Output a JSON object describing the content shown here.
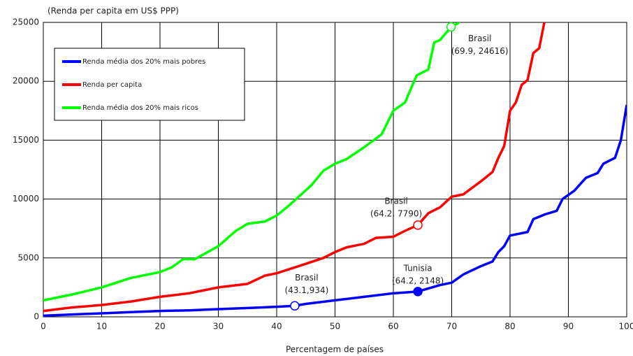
{
  "chart_data": {
    "type": "line",
    "y_label": "(Renda per capita em US$ PPP)",
    "x_label": "Percentagem de países",
    "xlim": [
      0,
      100
    ],
    "ylim": [
      0,
      25000
    ],
    "xticks": [
      0,
      10,
      20,
      30,
      40,
      50,
      60,
      70,
      80,
      90,
      100
    ],
    "yticks": [
      0,
      5000,
      10000,
      15000,
      20000,
      25000
    ],
    "grid": true,
    "legend": "upper left",
    "series": [
      {
        "name": "Renda média dos 20% mais pobres",
        "color": "#0000ff",
        "x": [
          0,
          5,
          10,
          15,
          20,
          25,
          30,
          35,
          40,
          43.1,
          45,
          50,
          55,
          60,
          64.2,
          68,
          70,
          72,
          75,
          77,
          78,
          79,
          80,
          83,
          84,
          86,
          88,
          89,
          91,
          93,
          95,
          96,
          98,
          99,
          100
        ],
        "values": [
          100,
          200,
          300,
          400,
          500,
          550,
          650,
          750,
          850,
          934,
          1100,
          1400,
          1700,
          2000,
          2148,
          2700,
          2900,
          3600,
          4300,
          4700,
          5500,
          6000,
          6900,
          7200,
          8300,
          8700,
          9000,
          10000,
          10700,
          11800,
          12200,
          13000,
          13500,
          15000,
          18000
        ]
      },
      {
        "name": "Renda per capita",
        "color": "#ff0000",
        "x": [
          0,
          5,
          10,
          15,
          20,
          25,
          30,
          35,
          38,
          40,
          45,
          48,
          50,
          52,
          55,
          57,
          60,
          62,
          64.2,
          66,
          68,
          70,
          72,
          75,
          77,
          78,
          79,
          80,
          81,
          82,
          83,
          84,
          85,
          86
        ],
        "values": [
          500,
          800,
          1000,
          1300,
          1700,
          2000,
          2500,
          2800,
          3500,
          3700,
          4500,
          5000,
          5500,
          5900,
          6200,
          6700,
          6800,
          7300,
          7790,
          8800,
          9300,
          10200,
          10400,
          11500,
          12300,
          13500,
          14500,
          17500,
          18200,
          19700,
          20100,
          22400,
          22800,
          25300
        ]
      },
      {
        "name": "Renda média dos 20% mais ricos",
        "color": "#00ff00",
        "x": [
          0,
          5,
          10,
          15,
          20,
          22,
          24,
          26,
          30,
          33,
          35,
          38,
          40,
          42,
          44,
          46,
          48,
          50,
          52,
          55,
          58,
          60,
          62,
          64,
          66,
          67,
          68,
          69.9,
          71,
          72
        ],
        "values": [
          1400,
          1900,
          2500,
          3300,
          3800,
          4200,
          4900,
          4900,
          6000,
          7300,
          7900,
          8100,
          8600,
          9400,
          10300,
          11200,
          12400,
          13000,
          13400,
          14400,
          15500,
          17500,
          18200,
          20500,
          21000,
          23300,
          23500,
          24616,
          24900,
          25400
        ]
      }
    ],
    "annotations": [
      {
        "lines": [
          "Brasil",
          "(43.1,934)"
        ],
        "x": 43.1,
        "y": 934,
        "series": 0,
        "filled": false
      },
      {
        "lines": [
          "Tunisia",
          "(64.2, 2148)"
        ],
        "x": 64.2,
        "y": 2148,
        "series": 0,
        "filled": true
      },
      {
        "lines": [
          "Brasil",
          "(64.2, 7790)"
        ],
        "x": 64.2,
        "y": 7790,
        "series": 1,
        "filled": false
      },
      {
        "lines": [
          "Brasil",
          "(69.9, 24616)"
        ],
        "x": 69.9,
        "y": 24616,
        "series": 2,
        "filled": false
      }
    ]
  }
}
